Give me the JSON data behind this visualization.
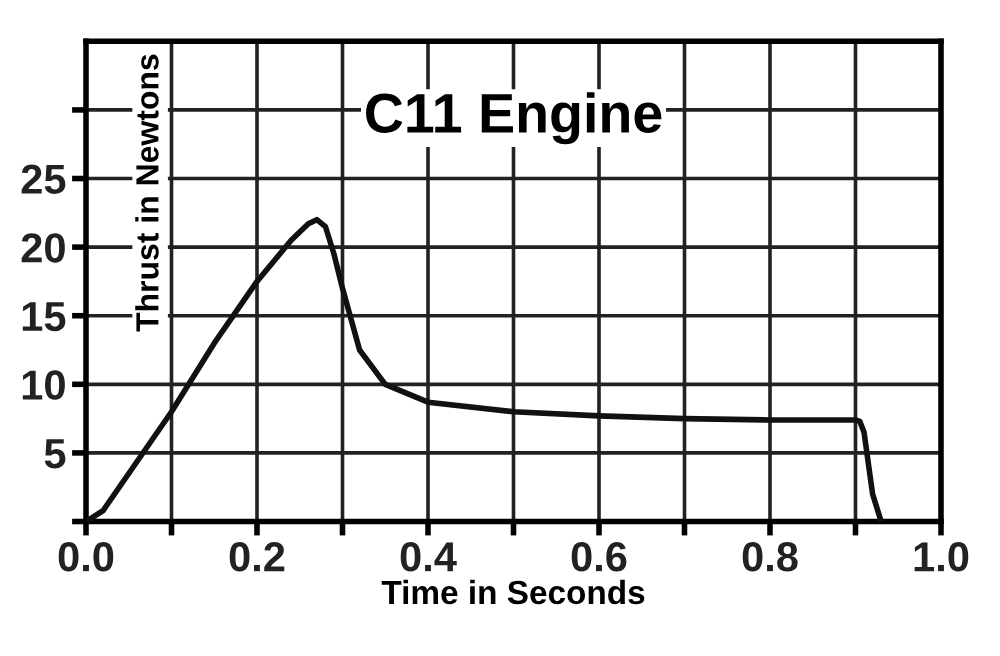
{
  "chart_data": {
    "type": "line",
    "title": "C11 Engine",
    "xlabel": "Time in Seconds",
    "ylabel": "Thrust in Newtons",
    "x": [
      0,
      0.02,
      0.05,
      0.1,
      0.15,
      0.2,
      0.24,
      0.26,
      0.27,
      0.28,
      0.29,
      0.3,
      0.32,
      0.35,
      0.4,
      0.5,
      0.6,
      0.7,
      0.8,
      0.9,
      0.905,
      0.91,
      0.92,
      0.93
    ],
    "series": [
      {
        "color": "#111111",
        "values": [
          0,
          0.8,
          3.5,
          8,
          13,
          17.5,
          20.5,
          21.7,
          22,
          21.5,
          19.5,
          17,
          12.5,
          10,
          8.7,
          8,
          7.7,
          7.5,
          7.4,
          7.4,
          7.3,
          6.5,
          2,
          0
        ]
      }
    ],
    "xlim": [
      0,
      1
    ],
    "ylim": [
      0,
      35
    ],
    "xticks": [
      {
        "value": 0,
        "label": "0.0"
      },
      {
        "value": 0.1,
        "label": null
      },
      0.2,
      {
        "value": 0.3,
        "label": null
      },
      0.4,
      {
        "value": 0.5,
        "label": null
      },
      0.6,
      {
        "value": 0.7,
        "label": null
      },
      0.8,
      {
        "value": 0.9,
        "label": null
      },
      {
        "value": 1,
        "label": "1.0"
      }
    ],
    "yticks": [
      {
        "value": 0,
        "label": null
      },
      5,
      10,
      15,
      20,
      25,
      {
        "value": 30,
        "label": null
      }
    ],
    "grid": true,
    "marker": "none",
    "line_style": "solid"
  }
}
